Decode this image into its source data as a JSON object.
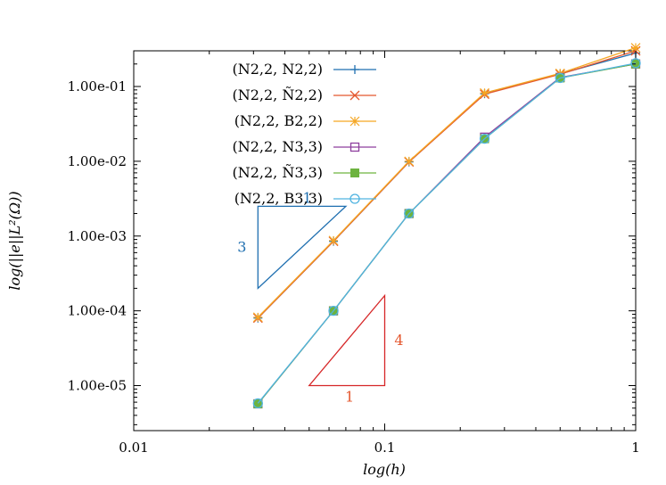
{
  "chart_data": {
    "type": "line",
    "title": "",
    "xlabel": "log(h)",
    "ylabel": "log(||e||L²(Ω))",
    "x_scale": "log",
    "y_scale": "log",
    "xlim": [
      0.01,
      1
    ],
    "ylim": [
      2.5e-06,
      0.3
    ],
    "x_ticks": [
      {
        "value": 0.01,
        "label": "0.01"
      },
      {
        "value": 0.1,
        "label": "0.1"
      },
      {
        "value": 1,
        "label": "1"
      }
    ],
    "y_ticks": [
      {
        "value": 1e-05,
        "label": "1.00e-05"
      },
      {
        "value": 0.0001,
        "label": "1.00e-04"
      },
      {
        "value": 0.001,
        "label": "1.00e-03"
      },
      {
        "value": 0.01,
        "label": "1.00e-02"
      },
      {
        "value": 0.1,
        "label": "1.00e-01"
      }
    ],
    "grid": false,
    "legend_position": "top-center",
    "x": [
      0.03125,
      0.0625,
      0.125,
      0.25,
      0.5,
      1
    ],
    "series": [
      {
        "name": "(N2,2, N2,2)",
        "color": "#1f6fb0",
        "marker": "plus",
        "values": [
          8e-05,
          0.00085,
          0.0098,
          0.08,
          0.148,
          0.28
        ]
      },
      {
        "name": "(N2,2, Ñ2,2)",
        "color": "#e4572e",
        "marker": "x",
        "values": [
          8e-05,
          0.00085,
          0.0098,
          0.079,
          0.146,
          0.3
        ]
      },
      {
        "name": "(N2,2, B2,2)",
        "color": "#f5a623",
        "marker": "star",
        "values": [
          8.2e-05,
          0.00087,
          0.01,
          0.082,
          0.15,
          0.33
        ]
      },
      {
        "name": "(N2,2, N3,3)",
        "color": "#8e3f9e",
        "marker": "square-open",
        "values": [
          5.7e-06,
          0.0001,
          0.002,
          0.021,
          0.132,
          0.2
        ]
      },
      {
        "name": "(N2,2, Ñ3,3)",
        "color": "#6db33f",
        "marker": "square-filled",
        "values": [
          5.7e-06,
          0.0001,
          0.002,
          0.02,
          0.13,
          0.2
        ]
      },
      {
        "name": "(N2,2, B3,3)",
        "color": "#4fb3e0",
        "marker": "circle-open",
        "values": [
          5.8e-06,
          0.0001,
          0.002,
          0.02,
          0.13,
          0.205
        ]
      }
    ],
    "annotations": [
      {
        "kind": "slope-triangle",
        "color": "#1f6fb0",
        "vertices": [
          [
            0.03125,
            0.0025
          ],
          [
            0.07,
            0.0025
          ],
          [
            0.03125,
            0.0002
          ]
        ],
        "run_label": "1",
        "rise_label": "3"
      },
      {
        "kind": "slope-triangle",
        "color": "#d62728",
        "vertices": [
          [
            0.05,
            1e-05
          ],
          [
            0.1,
            1e-05
          ],
          [
            0.1,
            0.00016
          ]
        ],
        "run_label": "1",
        "rise_label": "4"
      }
    ]
  }
}
